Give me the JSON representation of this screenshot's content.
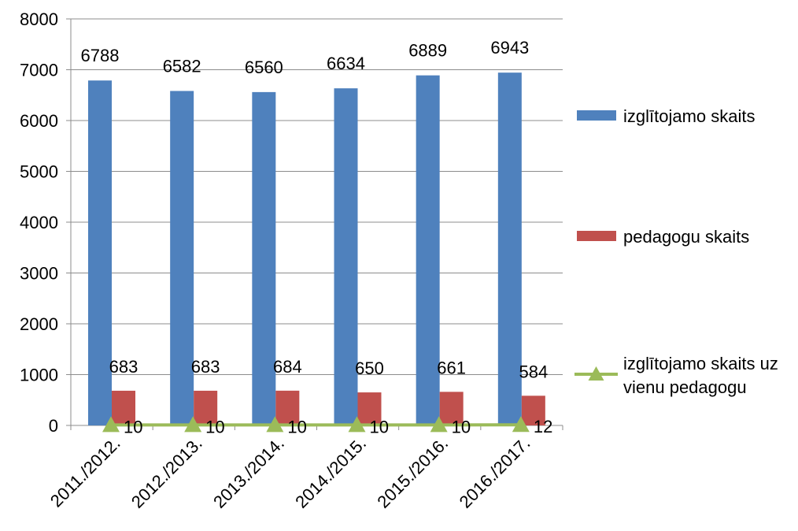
{
  "chart_data": {
    "type": "bar",
    "title": "",
    "xlabel": "",
    "ylabel": "",
    "ylim": [
      0,
      8000
    ],
    "yticks": [
      0,
      1000,
      2000,
      3000,
      4000,
      5000,
      6000,
      7000,
      8000
    ],
    "grid": true,
    "legend_position": "right",
    "categories": [
      "2011./2012.",
      "2012./2013.",
      "2013./2014.",
      "2014./2015.",
      "2015./2016.",
      "2016./2017."
    ],
    "series": [
      {
        "name": "izglītojamo skaits",
        "kind": "bar",
        "color": "#4F81BD",
        "values": [
          6788,
          6582,
          6560,
          6634,
          6889,
          6943
        ]
      },
      {
        "name": "pedagogu skaits",
        "kind": "bar",
        "color": "#C0504D",
        "values": [
          683,
          683,
          684,
          650,
          661,
          584
        ]
      },
      {
        "name": "izglītojamo skaits uz vienu pedagogu",
        "kind": "line",
        "marker": "triangle",
        "color": "#9BBB59",
        "values": [
          10,
          10,
          10,
          10,
          10,
          12
        ]
      }
    ],
    "legend_lines": [
      [
        "izglītojamo skaits"
      ],
      [
        "pedagogu skaits"
      ],
      [
        "izglītojamo skaits uz",
        "vienu pedagogu"
      ]
    ]
  }
}
